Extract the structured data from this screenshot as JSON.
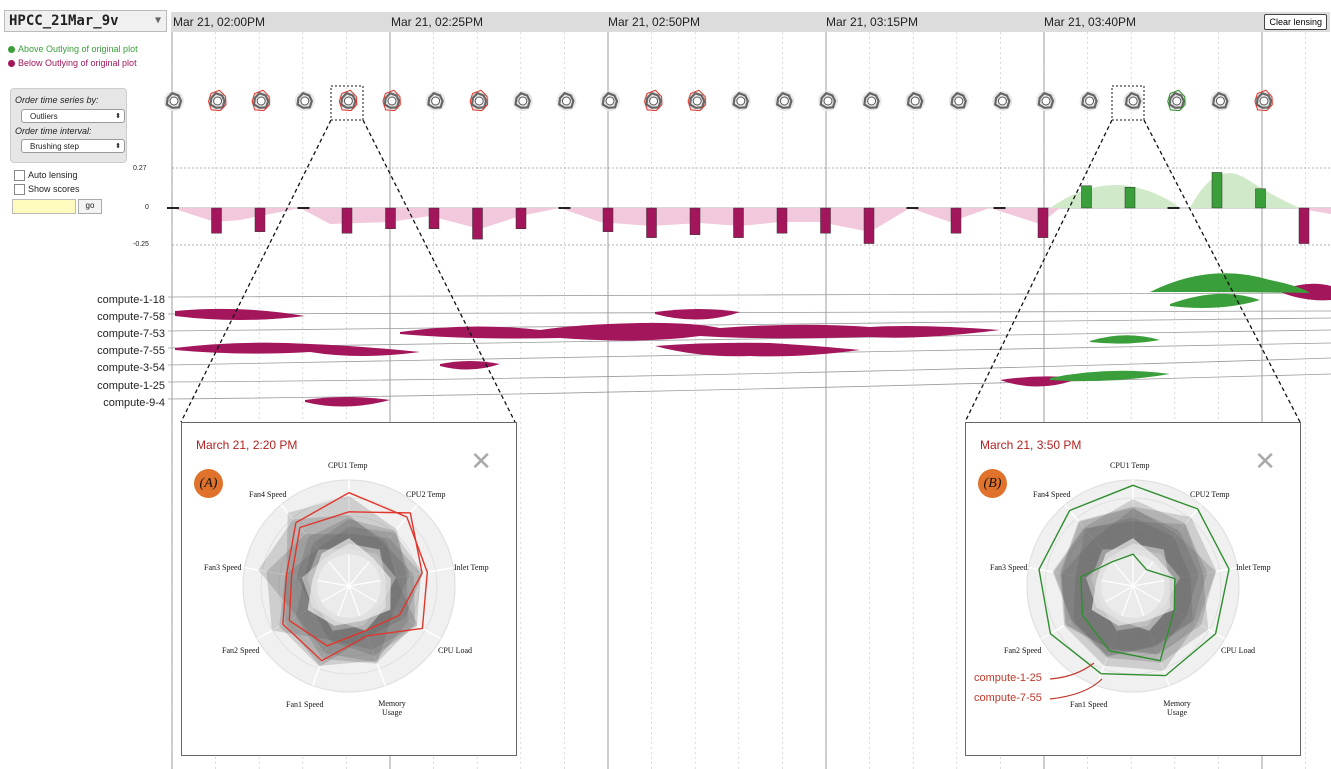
{
  "dataset": {
    "name": "HPCC_21Mar_9v"
  },
  "header": {
    "ticks": [
      "Mar 21, 02:00PM",
      "Mar 21, 02:25PM",
      "Mar 21, 02:50PM",
      "Mar 21, 03:15PM",
      "Mar 21, 03:40PM"
    ],
    "clear_lensing": "Clear lensing"
  },
  "legend": {
    "above": {
      "label": "Above Outlying of original plot",
      "color": "#3a9e3a"
    },
    "below": {
      "label": "Below Outlying of original plot",
      "color": "#a3165c"
    }
  },
  "controls": {
    "order_series_label": "Order time series by:",
    "order_series_value": "Outliers",
    "order_interval_label": "Order time interval:",
    "order_interval_value": "Brushing step",
    "auto_lensing": "Auto lensing",
    "show_scores": "Show scores",
    "go": "go"
  },
  "y_axis": {
    "top": "0.27",
    "zero": "0",
    "bottom": "-0.25"
  },
  "hosts": [
    "compute-1-18",
    "compute-7-58",
    "compute-7-53",
    "compute-7-55",
    "compute-3-54",
    "compute-1-25",
    "compute-9-4"
  ],
  "score_bars": [
    0,
    -0.17,
    -0.16,
    0,
    -0.17,
    -0.14,
    -0.14,
    -0.21,
    -0.14,
    0,
    -0.16,
    -0.2,
    -0.18,
    -0.2,
    -0.17,
    -0.17,
    -0.24,
    0,
    -0.17,
    0,
    -0.2,
    0.15,
    0.14,
    0,
    0.24,
    0.13,
    -0.24
  ],
  "glyph_status": [
    "gray",
    "red",
    "red",
    "gray",
    "red",
    "red",
    "gray",
    "red",
    "gray",
    "gray",
    "gray",
    "red",
    "red",
    "gray",
    "gray",
    "gray",
    "gray",
    "gray",
    "gray",
    "gray",
    "gray",
    "gray",
    "gray",
    "green",
    "gray",
    "red"
  ],
  "panel_a": {
    "title": "March 21, 2:20 PM",
    "badge": "(A)",
    "axes": [
      "CPU1 Temp",
      "CPU2 Temp",
      "Inlet Temp",
      "CPU Load",
      "Memory Usage",
      "Fan1 Speed",
      "Fan2 Speed",
      "Fan3 Speed",
      "Fan4 Speed"
    ]
  },
  "panel_b": {
    "title": "March 21, 3:50 PM",
    "badge": "(B)",
    "axes": [
      "CPU1 Temp",
      "CPU2 Temp",
      "Inlet Temp",
      "CPU Load",
      "Memory Usage",
      "Fan1 Speed",
      "Fan2 Speed",
      "Fan3 Speed",
      "Fan4 Speed"
    ],
    "callouts": [
      "compute-1-25",
      "compute-7-55"
    ]
  },
  "colors": {
    "below": "#a3165c",
    "above": "#3a9e3a",
    "outline_red": "#e0362b",
    "outline_green": "#2f8f2f"
  }
}
